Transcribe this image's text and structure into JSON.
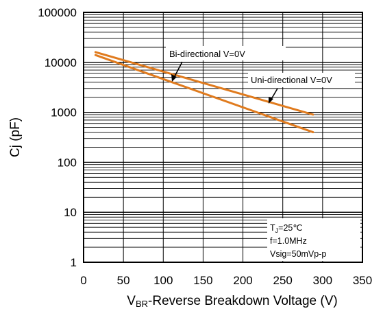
{
  "chart_data": {
    "type": "line",
    "xlabel_main": "V",
    "xlabel_sub": "BR",
    "xlabel_rest": "-Reverse Breakdown Voltage (V)",
    "ylabel_main": "Cj",
    "ylabel_rest": " (pF)",
    "xlim": [
      0,
      350
    ],
    "ylim": [
      1,
      100000
    ],
    "yscale": "log",
    "grid": true,
    "x_ticks": [
      "0",
      "50",
      "100",
      "150",
      "200",
      "250",
      "300",
      "350"
    ],
    "x_tick_values": [
      0,
      50,
      100,
      150,
      200,
      250,
      300,
      350
    ],
    "y_ticks": [
      "1",
      "10",
      "100",
      "1000",
      "10000",
      "100000"
    ],
    "y_tick_values": [
      1,
      10,
      100,
      1000,
      10000,
      100000
    ],
    "series": [
      {
        "name": "Bi-directional V=0V",
        "x": [
          15,
          288
        ],
        "y": [
          16000,
          900
        ]
      },
      {
        "name": "Uni-directional V=0V",
        "x": [
          15,
          288
        ],
        "y": [
          14000,
          400
        ]
      }
    ],
    "annotations": [
      {
        "text": "Bi-directional V=0V",
        "series": 0
      },
      {
        "text": "Uni-directional V=0V",
        "series": 1
      }
    ],
    "conditions": {
      "tj_main": "T",
      "tj_sub": "J",
      "tj_rest": "=25℃",
      "freq": "f=1.0MHz",
      "vsig": "Vsig=50mVp-p"
    },
    "colors": {
      "series": "#e07b1e",
      "grid": "#000000",
      "frame": "#000000"
    }
  }
}
